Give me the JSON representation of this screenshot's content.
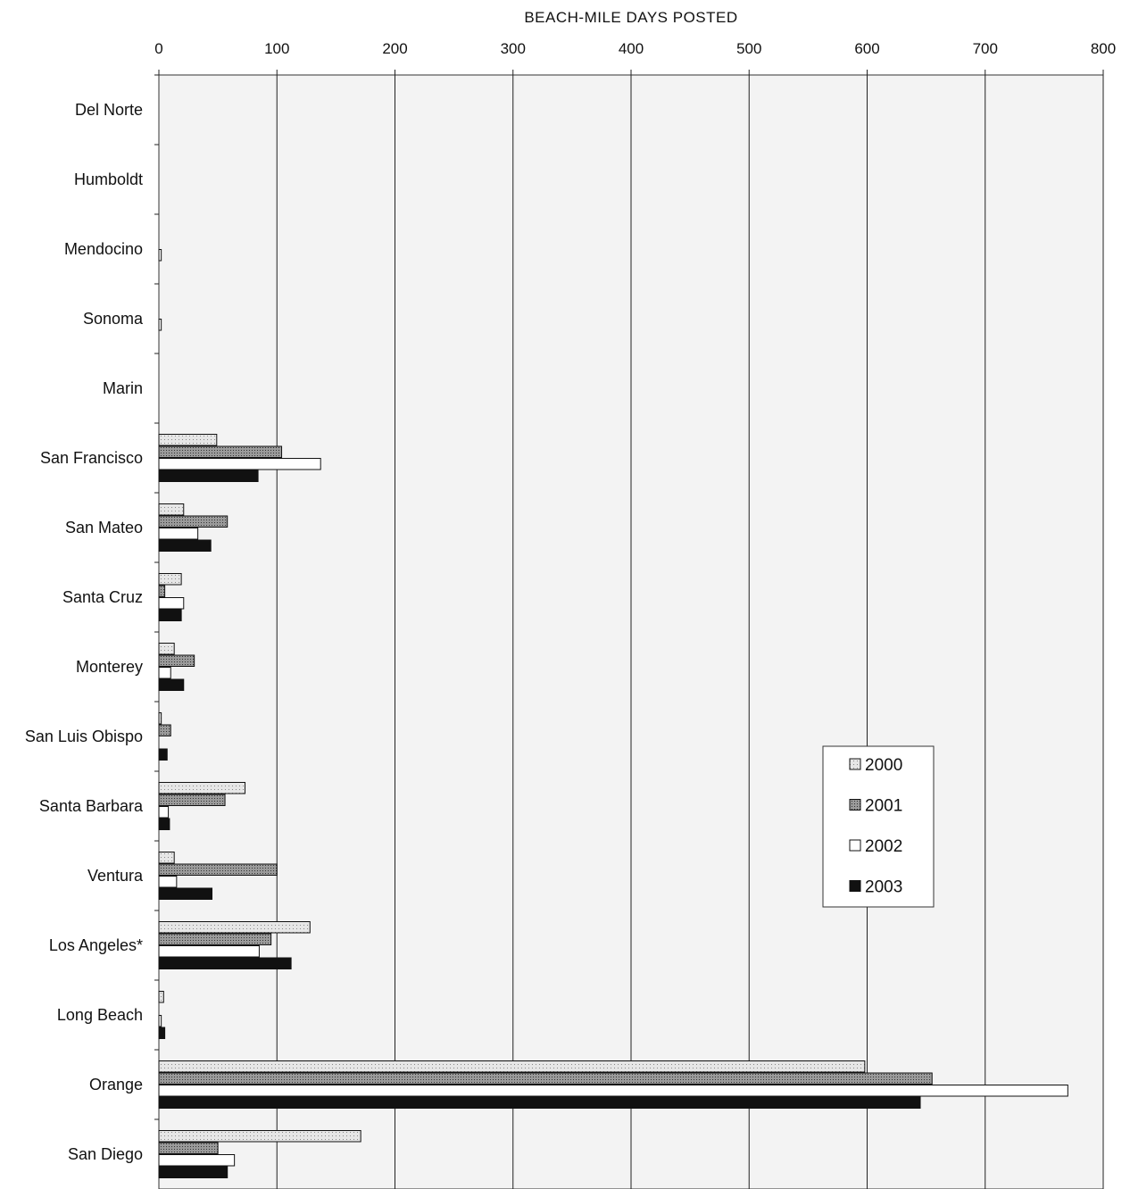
{
  "chart_data": {
    "type": "bar",
    "orientation": "horizontal",
    "title": "",
    "xlabel": "BEACH-MILE DAYS POSTED",
    "xlabel_position": "top",
    "ylabel": "",
    "xlim": [
      0,
      800
    ],
    "xticks": [
      0,
      100,
      200,
      300,
      400,
      500,
      600,
      700,
      800
    ],
    "grid": "vertical lines",
    "legend_position": "right, lower-middle",
    "categories": [
      "Del Norte",
      "Humboldt",
      "Mendocino",
      "Sonoma",
      "Marin",
      "San Francisco",
      "San Mateo",
      "Santa Cruz",
      "Monterey",
      "San Luis Obispo",
      "Santa Barbara",
      "Ventura",
      "Los Angeles*",
      "Long Beach",
      "Orange",
      "San Diego"
    ],
    "series": [
      {
        "name": "2000",
        "color": "#dcdcdc",
        "values": [
          0,
          0,
          0,
          0,
          0,
          49,
          21,
          19,
          13,
          2,
          73,
          13,
          128,
          4,
          598,
          171
        ]
      },
      {
        "name": "2001",
        "color": "#888888",
        "values": [
          0,
          0,
          0,
          0,
          0,
          104,
          58,
          5,
          30,
          10,
          56,
          100,
          95,
          0,
          655,
          50
        ]
      },
      {
        "name": "2002",
        "color": "#ffffff",
        "values": [
          0,
          0,
          2,
          2,
          0,
          137,
          33,
          21,
          10,
          0,
          8,
          15,
          85,
          2,
          770,
          64
        ]
      },
      {
        "name": "2003",
        "color": "#111111",
        "values": [
          0,
          0,
          0,
          0,
          0,
          84,
          44,
          19,
          21,
          7,
          9,
          45,
          112,
          5,
          645,
          58
        ]
      }
    ]
  }
}
